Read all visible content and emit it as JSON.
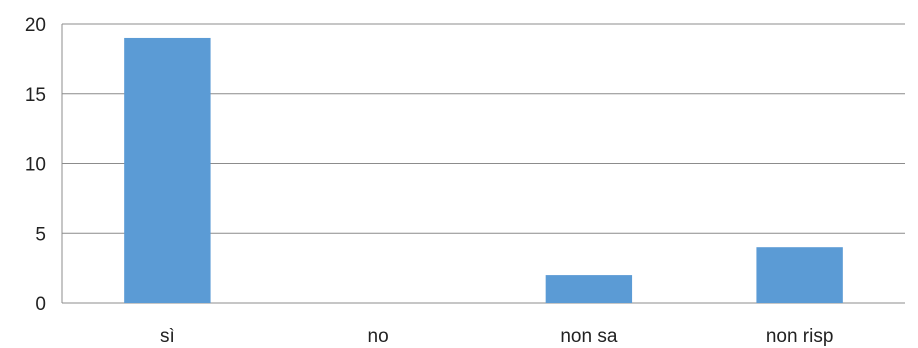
{
  "chart_data": {
    "type": "bar",
    "title": "",
    "xlabel": "",
    "ylabel": "",
    "categories": [
      "sì",
      "no",
      "non sa",
      "non risp"
    ],
    "values": [
      19,
      0,
      2,
      4
    ],
    "ylim": [
      0,
      20
    ],
    "yticks": [
      "0",
      "5",
      "10",
      "15",
      "20"
    ],
    "grid": true,
    "legend": "none",
    "colors": {
      "bar": "#5B9BD5",
      "grid": "#8C8C8C",
      "text": "#222222"
    }
  }
}
